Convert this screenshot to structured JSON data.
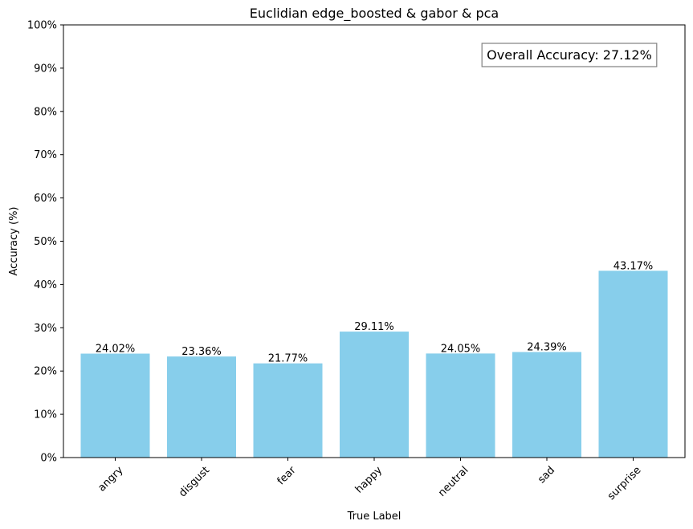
{
  "chart_data": {
    "type": "bar",
    "title": "Euclidian edge_boosted & gabor & pca",
    "xlabel": "True Label",
    "ylabel": "Accuracy (%)",
    "categories": [
      "angry",
      "disgust",
      "fear",
      "happy",
      "neutral",
      "sad",
      "surprise"
    ],
    "values": [
      24.02,
      23.36,
      21.77,
      29.11,
      24.05,
      24.39,
      43.17
    ],
    "value_labels": [
      "24.02%",
      "23.36%",
      "21.77%",
      "29.11%",
      "24.05%",
      "24.39%",
      "43.17%"
    ],
    "ylim": [
      0,
      100
    ],
    "yticks": [
      0,
      10,
      20,
      30,
      40,
      50,
      60,
      70,
      80,
      90,
      100
    ],
    "ytick_labels": [
      "0%",
      "10%",
      "20%",
      "30%",
      "40%",
      "50%",
      "60%",
      "70%",
      "80%",
      "90%",
      "100%"
    ],
    "xtick_rotation": 45,
    "annotation": "Overall Accuracy: 27.12%",
    "annotation_placement": "top-right",
    "grid": false,
    "legend": false,
    "bar_color": "#87CEEB"
  }
}
